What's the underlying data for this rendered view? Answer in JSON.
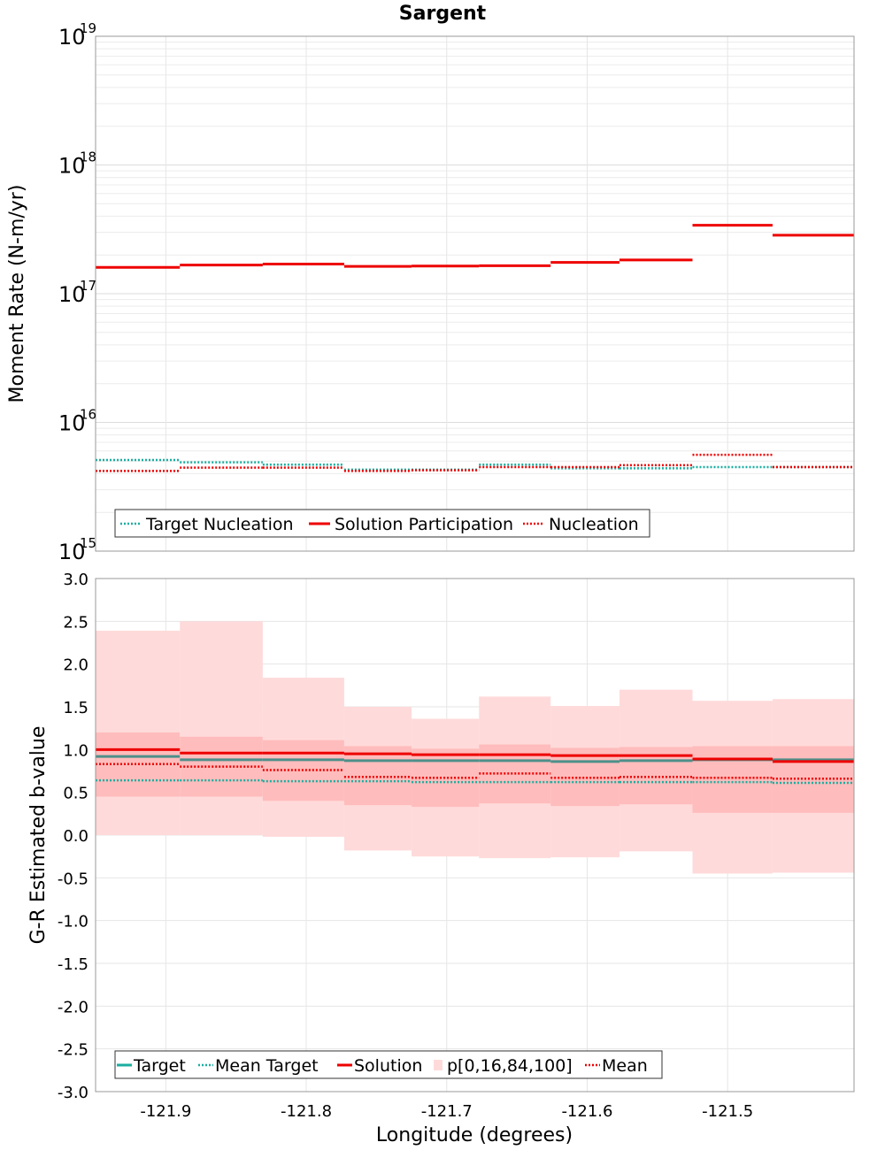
{
  "title": "Sargent",
  "colors": {
    "target": "#1aaea0",
    "mean_target": "#1aaea0",
    "target_nucleation": "#1aaea0",
    "solution": "#ee0000",
    "nucleation": "#ee0000",
    "mean": "#ee0000",
    "band_outer": "#ffdada",
    "band_inner": "#ffbcbc",
    "grid": "#e6e6e6"
  },
  "chart_data": [
    {
      "type": "line",
      "name": "moment-rate",
      "ylabel": "Moment Rate (N-m/yr)",
      "yscale": "log",
      "ylim": [
        1000000000000000.0,
        1e+19
      ],
      "xlim": [
        -121.95,
        -121.41
      ],
      "ytick_labels": [
        {
          "base": "10",
          "exp": "15"
        },
        {
          "base": "10",
          "exp": "16"
        },
        {
          "base": "10",
          "exp": "17"
        },
        {
          "base": "10",
          "exp": "18"
        },
        {
          "base": "10",
          "exp": "19"
        }
      ],
      "bin_edges": [
        -121.95,
        -121.89,
        -121.831,
        -121.773,
        -121.725,
        -121.677,
        -121.626,
        -121.577,
        -121.525,
        -121.468,
        -121.41
      ],
      "series": [
        {
          "name": "Target Nucleation",
          "style": "dotted",
          "color": "#1aaea0",
          "values": [
            5100000000000000.0,
            4900000000000000.0,
            4700000000000000.0,
            4300000000000000.0,
            4300000000000000.0,
            4700000000000000.0,
            4400000000000000.0,
            4400000000000000.0,
            4500000000000000.0,
            4500000000000000.0
          ]
        },
        {
          "name": "Solution Participation",
          "style": "solid",
          "color": "#ee0000",
          "values": [
            1.6e+17,
            1.67e+17,
            1.7e+17,
            1.63e+17,
            1.64e+17,
            1.65e+17,
            1.75e+17,
            1.83e+17,
            3.4e+17,
            2.85e+17
          ]
        },
        {
          "name": "Nucleation",
          "style": "dotted",
          "color": "#ee0000",
          "values": [
            4200000000000000.0,
            4450000000000000.0,
            4450000000000000.0,
            4200000000000000.0,
            4250000000000000.0,
            4500000000000000.0,
            4500000000000000.0,
            4650000000000000.0,
            5600000000000000.0,
            4500000000000000.0
          ]
        }
      ],
      "legend": {
        "placement": "bottom-left",
        "entries": [
          "Target Nucleation",
          "Solution Participation",
          "Nucleation"
        ]
      }
    },
    {
      "type": "line",
      "name": "b-value",
      "ylabel": "G-R Estimated b-value",
      "xlabel": "Longitude (degrees)",
      "ylim": [
        -3.0,
        3.0
      ],
      "xlim": [
        -121.95,
        -121.41
      ],
      "yticks": [
        -3.0,
        -2.5,
        -2.0,
        -1.5,
        -1.0,
        -0.5,
        0.0,
        0.5,
        1.0,
        1.5,
        2.0,
        2.5,
        3.0
      ],
      "ytick_labels": [
        "-3.0",
        "-2.5",
        "-2.0",
        "-1.5",
        "-1.0",
        "-0.5",
        "0.0",
        "0.5",
        "1.0",
        "1.5",
        "2.0",
        "2.5",
        "3.0"
      ],
      "xticks": [
        -121.9,
        -121.8,
        -121.7,
        -121.6,
        -121.5
      ],
      "xtick_labels": [
        "-121.9",
        "-121.8",
        "-121.7",
        "-121.6",
        "-121.5"
      ],
      "bin_edges": [
        -121.95,
        -121.89,
        -121.831,
        -121.773,
        -121.725,
        -121.677,
        -121.626,
        -121.577,
        -121.525,
        -121.468,
        -121.41
      ],
      "series": [
        {
          "name": "Target",
          "style": "solid",
          "color": "#1aaea0",
          "values": [
            0.92,
            0.88,
            0.88,
            0.87,
            0.87,
            0.87,
            0.86,
            0.87,
            0.88,
            0.88
          ]
        },
        {
          "name": "Mean Target",
          "style": "dotted",
          "color": "#1aaea0",
          "values": [
            0.64,
            0.64,
            0.63,
            0.63,
            0.62,
            0.62,
            0.62,
            0.62,
            0.62,
            0.61
          ]
        },
        {
          "name": "Solution",
          "style": "solid",
          "color": "#ee0000",
          "values": [
            1.0,
            0.96,
            0.96,
            0.95,
            0.94,
            0.94,
            0.93,
            0.93,
            0.89,
            0.86
          ]
        },
        {
          "name": "Mean",
          "style": "dotted",
          "color": "#ee0000",
          "values": [
            0.83,
            0.8,
            0.76,
            0.68,
            0.67,
            0.72,
            0.67,
            0.68,
            0.67,
            0.66
          ]
        }
      ],
      "band": {
        "name": "p[0,16,84,100]",
        "p0": [
          0.0,
          0.0,
          -0.02,
          -0.18,
          -0.25,
          -0.27,
          -0.26,
          -0.19,
          -0.45,
          -0.44
        ],
        "p16": [
          0.45,
          0.45,
          0.4,
          0.35,
          0.33,
          0.37,
          0.34,
          0.36,
          0.26,
          0.26
        ],
        "p84": [
          1.2,
          1.15,
          1.11,
          1.04,
          1.01,
          1.06,
          1.02,
          1.03,
          1.04,
          1.04
        ],
        "p100": [
          2.39,
          2.5,
          1.84,
          1.5,
          1.36,
          1.62,
          1.51,
          1.7,
          1.57,
          1.59
        ]
      },
      "legend": {
        "placement": "bottom-left",
        "entries": [
          "Target",
          "Mean Target",
          "Solution",
          "p[0,16,84,100]",
          "Mean"
        ]
      }
    }
  ]
}
